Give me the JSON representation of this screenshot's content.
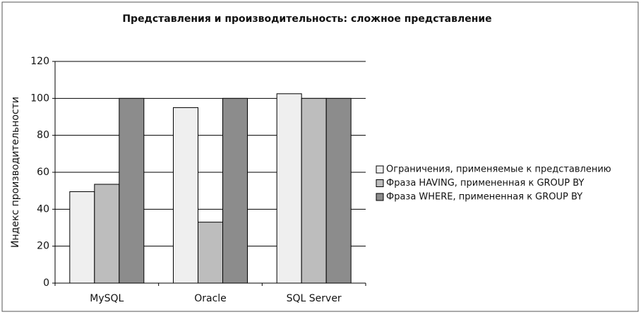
{
  "chart_data": {
    "type": "bar",
    "title": "Представления и производительность: сложное представление",
    "y_label": "Индекс производительности",
    "categories": [
      "MySQL",
      "Oracle",
      "SQL Server"
    ],
    "series": [
      {
        "name": "Ограничения, применяемые к представлению",
        "color": "#efefef",
        "values": [
          49.5,
          95,
          102.5
        ]
      },
      {
        "name": "Фраза HAVING, примененная к GROUP BY",
        "color": "#bdbdbd",
        "values": [
          53.5,
          33,
          100
        ]
      },
      {
        "name": "Фраза WHERE, примененная к GROUP BY",
        "color": "#8c8c8c",
        "values": [
          100,
          100,
          100
        ]
      }
    ],
    "ylim": [
      0,
      120
    ],
    "yticks": [
      0,
      20,
      40,
      60,
      80,
      100,
      120
    ],
    "grid": true,
    "legend": "right"
  }
}
